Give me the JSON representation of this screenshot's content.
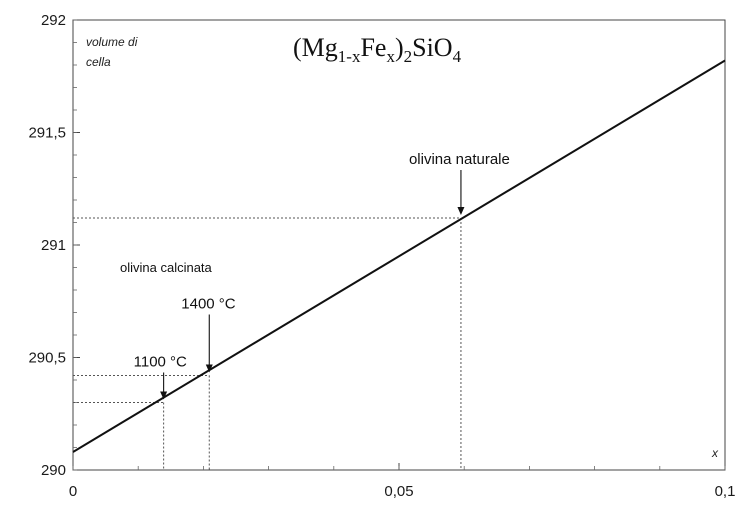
{
  "chart_data": {
    "type": "line",
    "title_parts": {
      "open": "(Mg",
      "sub1": "1-x",
      "mid": "Fe",
      "sub2": "x",
      "close": ")",
      "sub3": "2",
      "tail": "SiO",
      "sub4": "4"
    },
    "ylabel_lines": [
      "volume di",
      "cella"
    ],
    "xlabel": "x",
    "xlim": [
      0,
      0.1
    ],
    "ylim": [
      290,
      292
    ],
    "x_ticks": [
      {
        "value": 0,
        "label": "0"
      },
      {
        "value": 0.05,
        "label": "0,05"
      },
      {
        "value": 0.1,
        "label": "0,1"
      }
    ],
    "y_ticks": [
      {
        "value": 290,
        "label": "290"
      },
      {
        "value": 290.5,
        "label": "290,5"
      },
      {
        "value": 291,
        "label": "291"
      },
      {
        "value": 291.5,
        "label": "291,5"
      },
      {
        "value": 292,
        "label": "292"
      }
    ],
    "series": [
      {
        "x": [
          0,
          0.1
        ],
        "y": [
          290.08,
          291.82
        ]
      }
    ],
    "markers": [
      {
        "x": 0.0139,
        "y": 290.3,
        "label": "1100 °C"
      },
      {
        "x": 0.0209,
        "y": 290.42,
        "label": "1400 °C"
      },
      {
        "x": 0.0595,
        "y": 291.12,
        "label": "olivina naturale"
      }
    ],
    "group_label": "olivina calcinata",
    "grid": false,
    "legend": "none"
  }
}
